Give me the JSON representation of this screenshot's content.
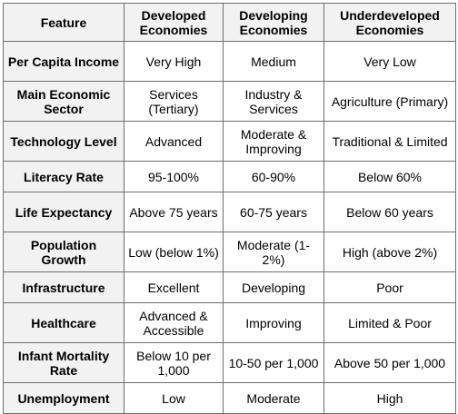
{
  "table": {
    "headers": [
      "Feature",
      "Developed Economies",
      "Developing Economies",
      "Underdeveloped Economies"
    ],
    "rows": [
      {
        "feature": "Per Capita Income",
        "developed": "Very High",
        "developing": "Medium",
        "underdeveloped": "Very Low"
      },
      {
        "feature": "Main Economic Sector",
        "developed": "Services (Tertiary)",
        "developing": "Industry & Services",
        "underdeveloped": "Agriculture (Primary)"
      },
      {
        "feature": "Technology Level",
        "developed": "Advanced",
        "developing": "Moderate & Improving",
        "underdeveloped": "Traditional & Limited"
      },
      {
        "feature": "Literacy Rate",
        "developed": "95-100%",
        "developing": "60-90%",
        "underdeveloped": "Below 60%"
      },
      {
        "feature": "Life Expectancy",
        "developed": "Above 75 years",
        "developing": "60-75 years",
        "underdeveloped": "Below 60 years"
      },
      {
        "feature": "Population Growth",
        "developed": "Low (below 1%)",
        "developing": "Moderate (1-2%)",
        "underdeveloped": "High (above 2%)"
      },
      {
        "feature": "Infrastructure",
        "developed": "Excellent",
        "developing": "Developing",
        "underdeveloped": "Poor"
      },
      {
        "feature": "Healthcare",
        "developed": "Advanced & Accessible",
        "developing": "Improving",
        "underdeveloped": "Limited & Poor"
      },
      {
        "feature": "Infant Mortality Rate",
        "developed": "Below 10 per 1,000",
        "developing": "10-50 per 1,000",
        "underdeveloped": "Above 50 per 1,000"
      },
      {
        "feature": "Unemployment",
        "developed": "Low",
        "developing": "Moderate",
        "underdeveloped": "High"
      }
    ]
  },
  "colors": {
    "header_bg": "#f2f2f2",
    "border": "#6e6e6e",
    "cell_bg": "#ffffff",
    "text": "#000000"
  }
}
